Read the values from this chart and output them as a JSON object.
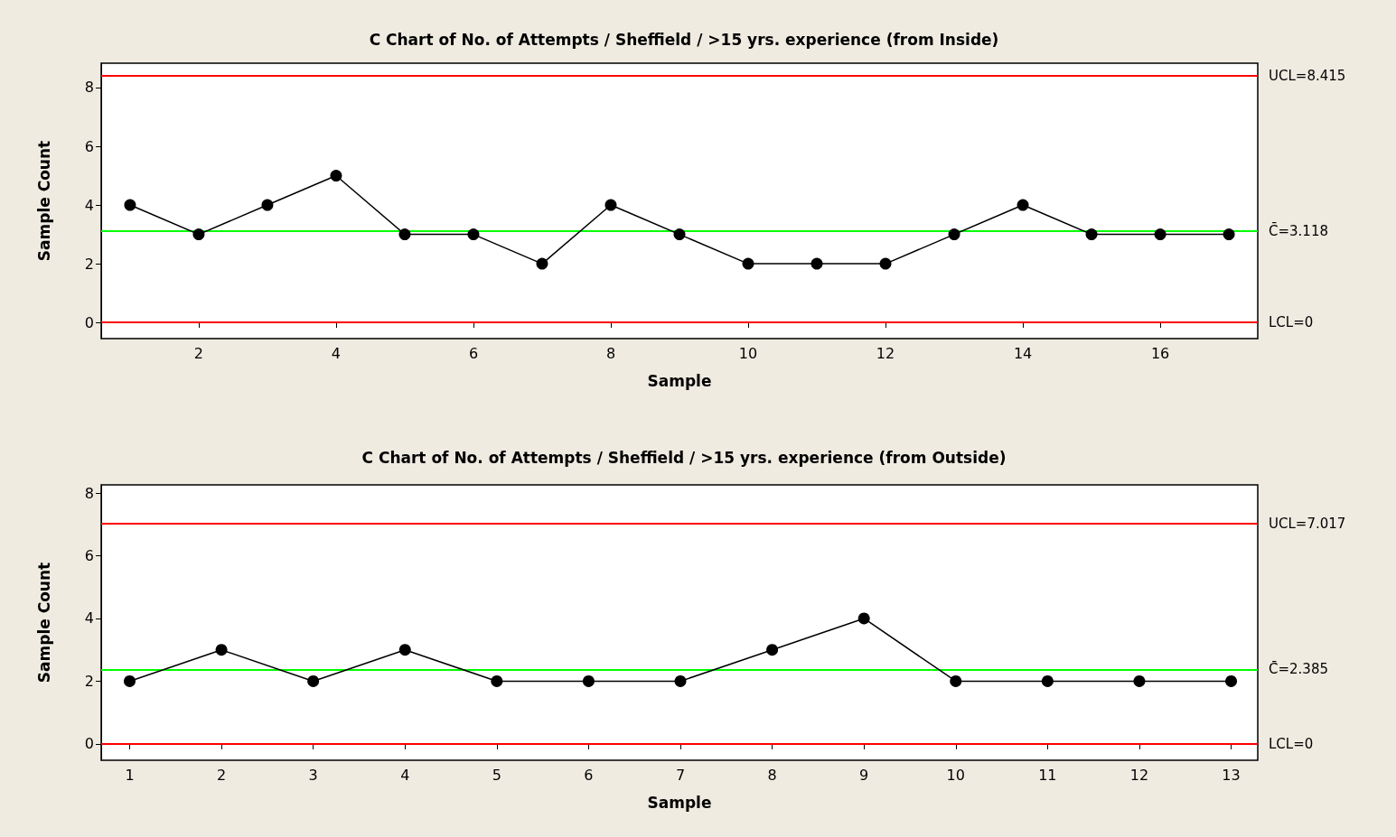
{
  "chart_data": [
    {
      "type": "line",
      "title": "C Chart of No. of Attempts / Sheffield / >15 yrs. experience (from Inside)",
      "xlabel": "Sample",
      "ylabel": "Sample Count",
      "x": [
        1,
        2,
        3,
        4,
        5,
        6,
        7,
        8,
        9,
        10,
        11,
        12,
        13,
        14,
        15,
        16,
        17
      ],
      "series": [
        {
          "color": "#000000",
          "values": [
            4,
            3,
            4,
            5,
            3,
            3,
            2,
            4,
            3,
            2,
            2,
            2,
            3,
            4,
            3,
            3,
            3
          ]
        }
      ],
      "xlim": [
        0.58,
        17.42
      ],
      "xticks": [
        2,
        4,
        6,
        8,
        10,
        12,
        14,
        16
      ],
      "ylim": [
        -0.55,
        8.83
      ],
      "yticks": [
        0,
        2,
        4,
        6,
        8
      ],
      "ref_lines": [
        {
          "axis": "y",
          "value": 8.415,
          "label": "UCL=8.415",
          "color": "#ff0000"
        },
        {
          "axis": "y",
          "value": 3.118,
          "label": "C̄=3.118",
          "color": "#00ff00"
        },
        {
          "axis": "y",
          "value": 0,
          "label": "LCL=0",
          "color": "#ff0000"
        }
      ],
      "marker": "circle",
      "line_style": "solid",
      "grid": false
    },
    {
      "type": "line",
      "title": "C Chart of No. of Attempts / Sheffield / >15 yrs. experience (from Outside)",
      "xlabel": "Sample",
      "ylabel": "Sample Count",
      "x": [
        1,
        2,
        3,
        4,
        5,
        6,
        7,
        8,
        9,
        10,
        11,
        12,
        13
      ],
      "series": [
        {
          "color": "#000000",
          "values": [
            2,
            3,
            2,
            3,
            2,
            2,
            2,
            3,
            4,
            2,
            2,
            2,
            2
          ]
        }
      ],
      "xlim": [
        0.69,
        13.29
      ],
      "xticks": [
        1,
        2,
        3,
        4,
        5,
        6,
        7,
        8,
        9,
        10,
        11,
        12,
        13
      ],
      "ylim": [
        -0.52,
        8.26
      ],
      "yticks": [
        0,
        2,
        4,
        6,
        8
      ],
      "ref_lines": [
        {
          "axis": "y",
          "value": 7.017,
          "label": "UCL=7.017",
          "color": "#ff0000"
        },
        {
          "axis": "y",
          "value": 2.385,
          "label": "C̄=2.385",
          "color": "#00ff00"
        },
        {
          "axis": "y",
          "value": 0,
          "label": "LCL=0",
          "color": "#ff0000"
        }
      ],
      "marker": "circle",
      "line_style": "solid",
      "grid": false
    }
  ]
}
